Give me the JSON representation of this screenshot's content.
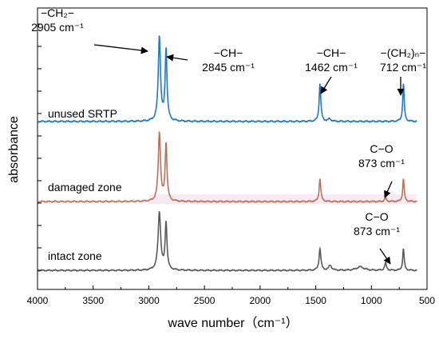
{
  "chart_data": {
    "type": "line",
    "title": "",
    "xlabel": "wave number（cm⁻¹）",
    "ylabel": "absorbance",
    "xlim": [
      4000,
      500
    ],
    "x_reversed": true,
    "x_ticks": [
      "4000",
      "3500",
      "3000",
      "2500",
      "2000",
      "1500",
      "1000",
      "500"
    ],
    "y_tick_labels": false,
    "grid": false,
    "legend": "none (series labeled inline at left)",
    "series": [
      {
        "name": "unused SRTP",
        "color": "#1f78c8",
        "baseline": 0.02,
        "peaks": [
          {
            "x": 2905,
            "height": 1.0,
            "width": 12
          },
          {
            "x": 2845,
            "height": 0.85,
            "width": 10
          },
          {
            "x": 1462,
            "height": 0.45,
            "width": 9
          },
          {
            "x": 1375,
            "height": 0.03,
            "width": 15
          },
          {
            "x": 712,
            "height": 0.45,
            "width": 8
          }
        ]
      },
      {
        "name": "damaged zone",
        "color": "#b9725e",
        "baseline": 0.02,
        "peaks": [
          {
            "x": 2905,
            "height": 0.9,
            "width": 12
          },
          {
            "x": 2845,
            "height": 0.75,
            "width": 10
          },
          {
            "x": 1462,
            "height": 0.3,
            "width": 9
          },
          {
            "x": 873,
            "height": 0.05,
            "width": 10
          },
          {
            "x": 712,
            "height": 0.3,
            "width": 8
          }
        ]
      },
      {
        "name": "intact zone",
        "color": "#5a5a5a",
        "baseline": 0.02,
        "peaks": [
          {
            "x": 2905,
            "height": 0.8,
            "width": 14
          },
          {
            "x": 2845,
            "height": 0.65,
            "width": 10
          },
          {
            "x": 1462,
            "height": 0.3,
            "width": 10
          },
          {
            "x": 1370,
            "height": 0.07,
            "width": 15
          },
          {
            "x": 1100,
            "height": 0.05,
            "width": 40
          },
          {
            "x": 873,
            "height": 0.1,
            "width": 10
          },
          {
            "x": 712,
            "height": 0.3,
            "width": 8
          }
        ]
      }
    ],
    "annotations": [
      {
        "line1": "−CH₂−",
        "line2": "2905 cm⁻¹",
        "x": 2905,
        "series": "unused SRTP"
      },
      {
        "line1": "−CH−",
        "line2": "2845 cm⁻¹",
        "x": 2845,
        "series": "unused SRTP"
      },
      {
        "line1": "−CH−",
        "line2": "1462 cm⁻¹",
        "x": 1462,
        "series": "unused SRTP"
      },
      {
        "line1": "−(CH₂)ₙ−",
        "line2": "712 cm⁻¹",
        "x": 712,
        "series": "unused SRTP"
      },
      {
        "line1": "C−O",
        "line2": "873 cm⁻¹",
        "x": 873,
        "series": "damaged zone"
      },
      {
        "line1": "C−O",
        "line2": "873 cm⁻¹",
        "x": 873,
        "series": "intact zone"
      }
    ]
  }
}
